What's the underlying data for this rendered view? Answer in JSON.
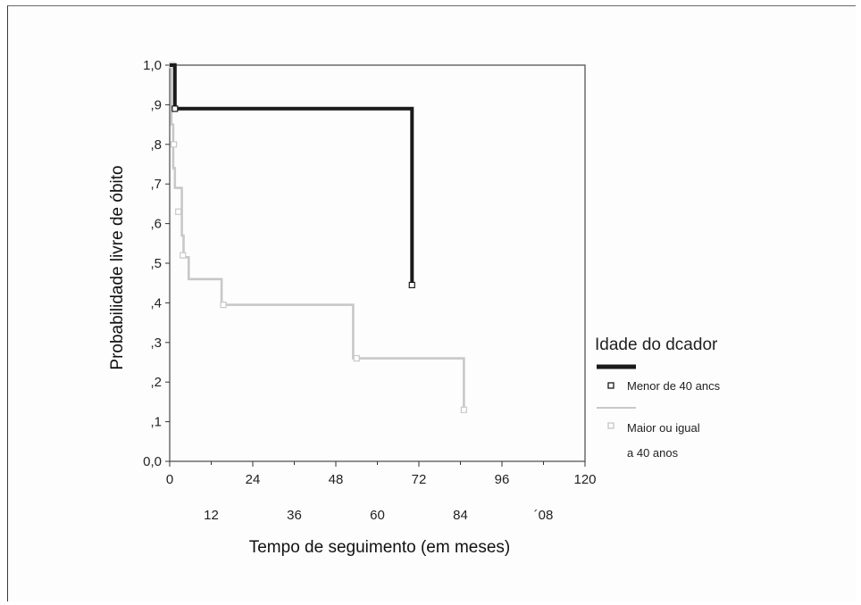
{
  "chart_data": {
    "type": "line",
    "xlabel": "Tempo de seguimento (em meses)",
    "ylabel": "Probabilidade livre de óbito",
    "xlim": [
      0,
      120
    ],
    "ylim": [
      0,
      1
    ],
    "x_ticks_upper": [
      "0",
      "24",
      "48",
      "72",
      "96",
      "120"
    ],
    "x_tick_values_upper": [
      0,
      24,
      48,
      72,
      96,
      120
    ],
    "x_ticks_lower": [
      "12",
      "36",
      "60",
      "84",
      "´08"
    ],
    "x_tick_values_lower": [
      12,
      36,
      60,
      84,
      108
    ],
    "y_ticks": [
      "0,0",
      ",1",
      ",2",
      ",3",
      ",4",
      ",5",
      ",6",
      ",7",
      ",8",
      ",9",
      "1,0"
    ],
    "y_tick_values": [
      0,
      0.1,
      0.2,
      0.3,
      0.4,
      0.5,
      0.6,
      0.7,
      0.8,
      0.9,
      1.0
    ],
    "grid": false,
    "legend_position": "right",
    "legend_title": "Idade do dcador",
    "series": [
      {
        "name": "Menor de 40 ancs",
        "color": "#1a1a1a",
        "points": [
          [
            0,
            1.0
          ],
          [
            1.5,
            1.0
          ],
          [
            1.5,
            0.89
          ],
          [
            70,
            0.89
          ],
          [
            70,
            0.445
          ]
        ],
        "censored": [
          [
            1.5,
            0.89
          ],
          [
            70,
            0.445
          ]
        ]
      },
      {
        "name_lines": [
          "Maior ou igual",
          "a 40 anos"
        ],
        "color": "#c8c8c8",
        "points": [
          [
            0,
            1.0
          ],
          [
            0.5,
            1.0
          ],
          [
            0.5,
            0.85
          ],
          [
            1,
            0.85
          ],
          [
            1,
            0.74
          ],
          [
            1.5,
            0.74
          ],
          [
            1.5,
            0.69
          ],
          [
            3.5,
            0.69
          ],
          [
            3.5,
            0.57
          ],
          [
            4,
            0.57
          ],
          [
            4,
            0.515
          ],
          [
            5.5,
            0.515
          ],
          [
            5.5,
            0.46
          ],
          [
            15,
            0.46
          ],
          [
            15,
            0.395
          ],
          [
            53,
            0.395
          ],
          [
            53,
            0.26
          ],
          [
            85,
            0.26
          ],
          [
            85,
            0.13
          ]
        ],
        "censored": [
          [
            0.8,
            1.0
          ],
          [
            1.2,
            0.8
          ],
          [
            2.5,
            0.63
          ],
          [
            3.8,
            0.52
          ],
          [
            15.5,
            0.395
          ],
          [
            54,
            0.26
          ],
          [
            85,
            0.13
          ]
        ]
      }
    ]
  }
}
